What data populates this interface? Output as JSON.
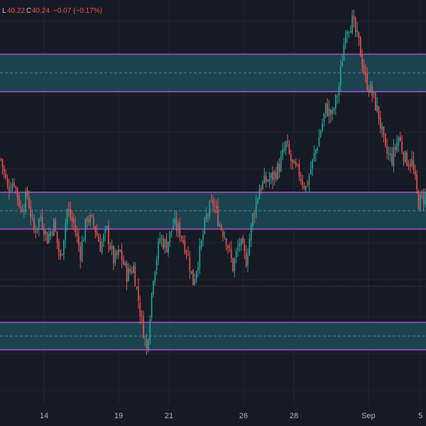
{
  "legend": {
    "low_label": "L",
    "low_value": "40.22",
    "close_label": "C",
    "close_value": "40.24",
    "change": "−0.07 (−0.17%)"
  },
  "colors": {
    "background": "#161a25",
    "grid": "#232632",
    "up": "#26a69a",
    "down": "#ef5350",
    "zone_fill": "#1b4a57",
    "zone_border": "#b04fd6",
    "zone_mid": "#5d7d8a",
    "price_line": "#ef5350",
    "text": "#b2b5be"
  },
  "chart_data": {
    "type": "candlestick",
    "x_tick_labels": [
      "14",
      "19",
      "21",
      "26",
      "28",
      "Sep",
      "5"
    ],
    "ylim": [
      38.6,
      44.2
    ],
    "zones": [
      {
        "top": 43.45,
        "bottom": 42.93
      },
      {
        "top": 41.54,
        "bottom": 41.03
      },
      {
        "top": 39.74,
        "bottom": 39.36
      }
    ],
    "last_close": 40.24,
    "waypoints": [
      [
        0,
        42.0
      ],
      [
        4,
        41.6
      ],
      [
        8,
        41.7
      ],
      [
        12,
        41.3
      ],
      [
        16,
        41.5
      ],
      [
        20,
        41.0
      ],
      [
        24,
        41.2
      ],
      [
        28,
        40.9
      ],
      [
        32,
        41.1
      ],
      [
        36,
        40.6
      ],
      [
        40,
        41.3
      ],
      [
        44,
        41.1
      ],
      [
        48,
        40.7
      ],
      [
        52,
        41.2
      ],
      [
        56,
        41.1
      ],
      [
        60,
        40.8
      ],
      [
        64,
        41.0
      ],
      [
        68,
        40.6
      ],
      [
        72,
        40.7
      ],
      [
        76,
        40.4
      ],
      [
        80,
        40.5
      ],
      [
        84,
        39.9
      ],
      [
        88,
        39.35
      ],
      [
        92,
        40.4
      ],
      [
        96,
        40.9
      ],
      [
        100,
        40.8
      ],
      [
        104,
        41.1
      ],
      [
        108,
        41.0
      ],
      [
        112,
        40.75
      ],
      [
        116,
        40.3
      ],
      [
        120,
        40.7
      ],
      [
        124,
        41.2
      ],
      [
        128,
        41.4
      ],
      [
        132,
        41.1
      ],
      [
        136,
        40.9
      ],
      [
        140,
        40.5
      ],
      [
        144,
        40.85
      ],
      [
        148,
        40.6
      ],
      [
        152,
        41.2
      ],
      [
        156,
        41.6
      ],
      [
        160,
        41.7
      ],
      [
        164,
        41.75
      ],
      [
        168,
        41.9
      ],
      [
        172,
        42.2
      ],
      [
        176,
        41.9
      ],
      [
        180,
        41.8
      ],
      [
        184,
        41.6
      ],
      [
        188,
        41.95
      ],
      [
        192,
        42.3
      ],
      [
        196,
        42.7
      ],
      [
        200,
        42.6
      ],
      [
        204,
        43.0
      ],
      [
        208,
        43.8
      ],
      [
        212,
        43.9
      ],
      [
        216,
        43.6
      ],
      [
        220,
        43.1
      ],
      [
        224,
        42.9
      ],
      [
        228,
        42.6
      ],
      [
        232,
        42.1
      ],
      [
        236,
        42.0
      ],
      [
        240,
        42.3
      ],
      [
        244,
        42.0
      ],
      [
        248,
        41.95
      ],
      [
        252,
        41.4
      ],
      [
        256,
        41.5
      ]
    ],
    "candle_count": 257
  }
}
